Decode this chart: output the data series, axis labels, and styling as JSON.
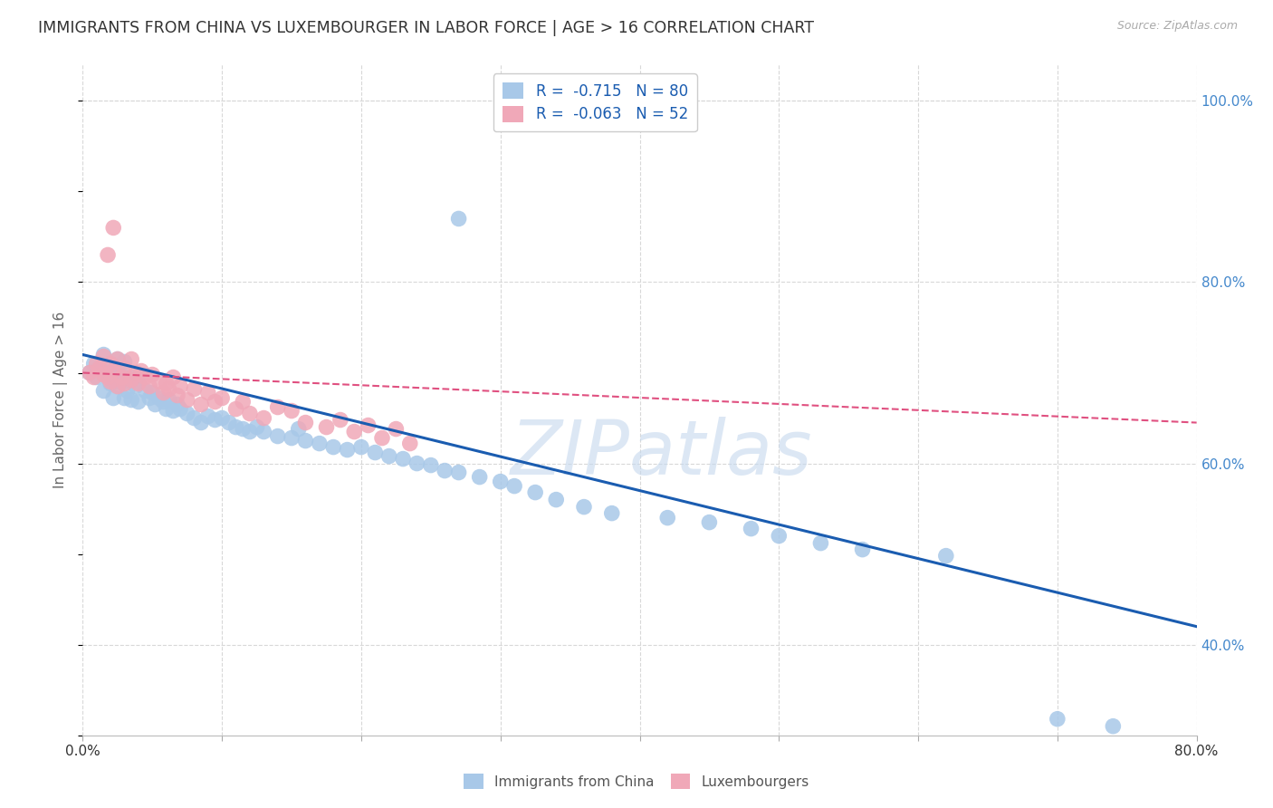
{
  "title": "IMMIGRANTS FROM CHINA VS LUXEMBOURGER IN LABOR FORCE | AGE > 16 CORRELATION CHART",
  "source_text": "Source: ZipAtlas.com",
  "ylabel": "In Labor Force | Age > 16",
  "watermark": "ZIPatlas",
  "x_min": 0.0,
  "x_max": 0.8,
  "y_min": 0.3,
  "y_max": 1.04,
  "right_yticks": [
    0.4,
    0.6,
    0.8,
    1.0
  ],
  "right_yticklabels": [
    "40.0%",
    "60.0%",
    "80.0%",
    "100.0%"
  ],
  "xticks": [
    0.0,
    0.1,
    0.2,
    0.3,
    0.4,
    0.5,
    0.6,
    0.7,
    0.8
  ],
  "xticklabels": [
    "0.0%",
    "",
    "",
    "",
    "",
    "",
    "",
    "",
    "80.0%"
  ],
  "legend_blue_label": "R =  -0.715   N = 80",
  "legend_pink_label": "R =  -0.063   N = 52",
  "legend_bottom_blue": "Immigrants from China",
  "legend_bottom_pink": "Luxembourgers",
  "blue_color": "#a8c8e8",
  "pink_color": "#f0a8b8",
  "blue_line_color": "#1a5cb0",
  "pink_line_color": "#e05080",
  "right_label_color": "#4488cc",
  "grid_color": "#d8d8d8",
  "blue_scatter_x": [
    0.005,
    0.008,
    0.01,
    0.012,
    0.015,
    0.015,
    0.018,
    0.02,
    0.02,
    0.02,
    0.022,
    0.022,
    0.025,
    0.025,
    0.025,
    0.028,
    0.03,
    0.03,
    0.03,
    0.032,
    0.035,
    0.035,
    0.038,
    0.04,
    0.04,
    0.045,
    0.048,
    0.05,
    0.052,
    0.055,
    0.058,
    0.06,
    0.062,
    0.065,
    0.068,
    0.07,
    0.075,
    0.08,
    0.085,
    0.09,
    0.095,
    0.1,
    0.105,
    0.11,
    0.115,
    0.12,
    0.125,
    0.13,
    0.14,
    0.15,
    0.155,
    0.16,
    0.17,
    0.18,
    0.19,
    0.2,
    0.21,
    0.22,
    0.23,
    0.24,
    0.25,
    0.26,
    0.27,
    0.285,
    0.3,
    0.31,
    0.325,
    0.34,
    0.36,
    0.38,
    0.27,
    0.42,
    0.45,
    0.48,
    0.5,
    0.53,
    0.56,
    0.62,
    0.7,
    0.74
  ],
  "blue_scatter_y": [
    0.7,
    0.71,
    0.695,
    0.705,
    0.68,
    0.72,
    0.695,
    0.7,
    0.688,
    0.71,
    0.695,
    0.672,
    0.7,
    0.685,
    0.715,
    0.69,
    0.695,
    0.672,
    0.712,
    0.68,
    0.695,
    0.67,
    0.685,
    0.69,
    0.668,
    0.68,
    0.672,
    0.678,
    0.665,
    0.672,
    0.668,
    0.66,
    0.67,
    0.658,
    0.665,
    0.66,
    0.655,
    0.65,
    0.645,
    0.652,
    0.648,
    0.65,
    0.645,
    0.64,
    0.638,
    0.635,
    0.64,
    0.635,
    0.63,
    0.628,
    0.638,
    0.625,
    0.622,
    0.618,
    0.615,
    0.618,
    0.612,
    0.608,
    0.605,
    0.6,
    0.598,
    0.592,
    0.59,
    0.585,
    0.58,
    0.575,
    0.568,
    0.56,
    0.552,
    0.545,
    0.87,
    0.54,
    0.535,
    0.528,
    0.52,
    0.512,
    0.505,
    0.498,
    0.318,
    0.31
  ],
  "pink_scatter_x": [
    0.005,
    0.008,
    0.01,
    0.012,
    0.015,
    0.015,
    0.018,
    0.02,
    0.02,
    0.022,
    0.025,
    0.025,
    0.028,
    0.03,
    0.03,
    0.035,
    0.035,
    0.038,
    0.04,
    0.042,
    0.045,
    0.048,
    0.05,
    0.055,
    0.058,
    0.06,
    0.062,
    0.065,
    0.068,
    0.07,
    0.075,
    0.08,
    0.085,
    0.09,
    0.095,
    0.1,
    0.11,
    0.115,
    0.12,
    0.13,
    0.14,
    0.15,
    0.16,
    0.175,
    0.185,
    0.195,
    0.205,
    0.215,
    0.225,
    0.235,
    0.018,
    0.022
  ],
  "pink_scatter_y": [
    0.7,
    0.695,
    0.71,
    0.705,
    0.698,
    0.718,
    0.695,
    0.71,
    0.69,
    0.702,
    0.685,
    0.715,
    0.695,
    0.705,
    0.688,
    0.692,
    0.715,
    0.7,
    0.688,
    0.702,
    0.695,
    0.685,
    0.698,
    0.69,
    0.678,
    0.688,
    0.682,
    0.695,
    0.675,
    0.685,
    0.67,
    0.682,
    0.665,
    0.678,
    0.668,
    0.672,
    0.66,
    0.668,
    0.655,
    0.65,
    0.662,
    0.658,
    0.645,
    0.64,
    0.648,
    0.635,
    0.642,
    0.628,
    0.638,
    0.622,
    0.83,
    0.86
  ],
  "blue_trend_x0": 0.0,
  "blue_trend_x1": 0.8,
  "blue_trend_y0": 0.72,
  "blue_trend_y1": 0.42,
  "pink_trend_x0": 0.0,
  "pink_trend_x1": 0.8,
  "pink_trend_y0": 0.7,
  "pink_trend_y1": 0.645
}
